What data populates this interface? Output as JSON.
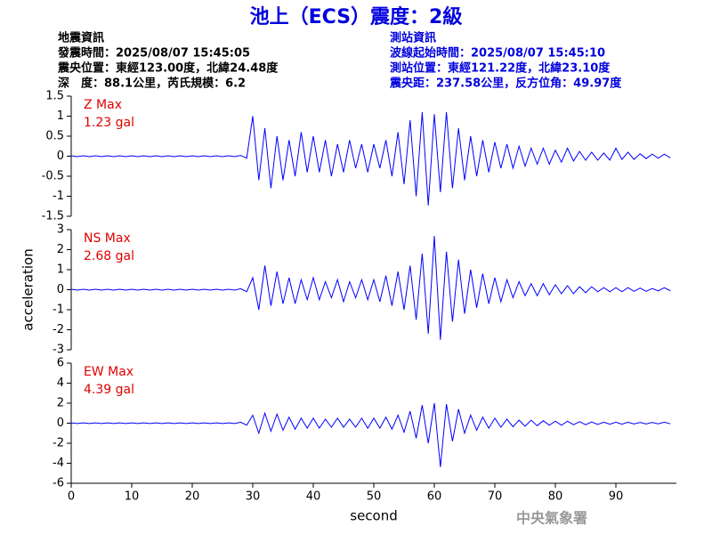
{
  "header": {
    "title": "池上（ECS）震度：2級",
    "left": [
      "地震資訊",
      "發震時間：2025/08/07 15:45:05",
      "震央位置：東經123.00度，北緯24.48度",
      "深　度：88.1公里，芮氏規模：6.2"
    ],
    "right": [
      "測站資訊",
      "波線起始時間：2025/08/07 15:45:10",
      "測站位置：東經121.22度，北緯23.10度",
      "震央距：237.58公里，反方位角：49.97度"
    ]
  },
  "footer": "中央氣象署",
  "chart_data": [
    {
      "type": "line",
      "xlim": [
        0,
        100
      ],
      "ylim": [
        -1.5,
        1.5
      ],
      "yticks": [
        -1.5,
        -1,
        -0.5,
        0,
        0.5,
        1,
        1.5
      ],
      "annotation": "1.23 gal",
      "x": [
        0,
        1,
        2,
        3,
        4,
        5,
        6,
        7,
        8,
        9,
        10,
        11,
        12,
        13,
        14,
        15,
        16,
        17,
        18,
        19,
        20,
        21,
        22,
        23,
        24,
        25,
        26,
        27,
        28,
        29,
        30,
        31,
        32,
        33,
        34,
        35,
        36,
        37,
        38,
        39,
        40,
        41,
        42,
        43,
        44,
        45,
        46,
        47,
        48,
        49,
        50,
        51,
        52,
        53,
        54,
        55,
        56,
        57,
        58,
        59,
        60,
        61,
        62,
        63,
        64,
        65,
        66,
        67,
        68,
        69,
        70,
        71,
        72,
        73,
        74,
        75,
        76,
        77,
        78,
        79,
        80,
        81,
        82,
        83,
        84,
        85,
        86,
        87,
        88,
        89,
        90,
        91,
        92,
        93,
        94,
        95,
        96,
        97,
        98,
        99
      ],
      "series": [
        {
          "name": "Z Max",
          "color": "#0000ff",
          "values": [
            0.01,
            -0.01,
            0.01,
            -0.01,
            0.01,
            -0.01,
            0.01,
            -0.01,
            0.01,
            -0.01,
            0.01,
            -0.01,
            0.01,
            -0.01,
            0.01,
            -0.01,
            0.01,
            -0.01,
            0.01,
            -0.01,
            0.01,
            -0.01,
            0.01,
            -0.01,
            0.01,
            -0.01,
            0.01,
            -0.01,
            0.02,
            -0.05,
            1.0,
            -0.6,
            0.7,
            -0.8,
            0.5,
            -0.6,
            0.4,
            -0.5,
            0.6,
            -0.4,
            0.5,
            -0.4,
            0.4,
            -0.5,
            0.3,
            -0.4,
            0.4,
            -0.3,
            0.3,
            -0.4,
            0.3,
            -0.3,
            0.4,
            -0.5,
            0.6,
            -0.7,
            0.9,
            -1.0,
            1.1,
            -1.23,
            1.05,
            -0.9,
            1.1,
            -0.8,
            0.7,
            -0.6,
            0.5,
            -0.5,
            0.4,
            -0.4,
            0.35,
            -0.3,
            0.3,
            -0.3,
            0.25,
            -0.25,
            0.2,
            -0.2,
            0.2,
            -0.2,
            0.15,
            -0.15,
            0.2,
            -0.12,
            0.12,
            -0.1,
            0.1,
            -0.1,
            0.08,
            -0.1,
            0.2,
            -0.08,
            0.1,
            -0.08,
            0.06,
            -0.06,
            0.05,
            -0.05,
            0.05,
            -0.04
          ]
        }
      ]
    },
    {
      "type": "line",
      "xlim": [
        0,
        100
      ],
      "ylim": [
        -3,
        3
      ],
      "yticks": [
        -3,
        -2,
        -1,
        0,
        1,
        2,
        3
      ],
      "annotation": "2.68 gal",
      "y_label": "acceleration",
      "x": [
        0,
        1,
        2,
        3,
        4,
        5,
        6,
        7,
        8,
        9,
        10,
        11,
        12,
        13,
        14,
        15,
        16,
        17,
        18,
        19,
        20,
        21,
        22,
        23,
        24,
        25,
        26,
        27,
        28,
        29,
        30,
        31,
        32,
        33,
        34,
        35,
        36,
        37,
        38,
        39,
        40,
        41,
        42,
        43,
        44,
        45,
        46,
        47,
        48,
        49,
        50,
        51,
        52,
        53,
        54,
        55,
        56,
        57,
        58,
        59,
        60,
        61,
        62,
        63,
        64,
        65,
        66,
        67,
        68,
        69,
        70,
        71,
        72,
        73,
        74,
        75,
        76,
        77,
        78,
        79,
        80,
        81,
        82,
        83,
        84,
        85,
        86,
        87,
        88,
        89,
        90,
        91,
        92,
        93,
        94,
        95,
        96,
        97,
        98,
        99
      ],
      "series": [
        {
          "name": "NS Max",
          "color": "#0000ff",
          "values": [
            0.02,
            -0.02,
            0.02,
            -0.02,
            0.02,
            -0.02,
            0.02,
            -0.02,
            0.02,
            -0.02,
            0.02,
            -0.02,
            0.02,
            -0.02,
            0.02,
            -0.02,
            0.02,
            -0.02,
            0.02,
            -0.02,
            0.02,
            -0.02,
            0.02,
            -0.02,
            0.02,
            -0.02,
            0.02,
            -0.02,
            0.05,
            -0.1,
            0.6,
            -1.0,
            1.2,
            -0.8,
            0.9,
            -0.7,
            0.6,
            -0.7,
            0.5,
            -0.5,
            0.6,
            -0.5,
            0.4,
            -0.4,
            0.5,
            -0.6,
            0.4,
            -0.4,
            0.5,
            -0.5,
            0.5,
            -0.6,
            0.7,
            -0.8,
            0.9,
            -1.0,
            1.2,
            -1.5,
            1.8,
            -2.2,
            2.68,
            -2.5,
            1.9,
            -1.6,
            1.5,
            -1.2,
            1.0,
            -0.9,
            0.8,
            -0.7,
            0.6,
            -0.6,
            0.5,
            -0.4,
            0.4,
            -0.3,
            0.3,
            -0.3,
            0.3,
            -0.25,
            0.25,
            -0.2,
            0.2,
            -0.2,
            0.15,
            -0.15,
            0.15,
            -0.1,
            0.1,
            -0.1,
            0.1,
            -0.1,
            0.1,
            -0.08,
            0.08,
            -0.08,
            0.06,
            -0.06,
            0.1,
            -0.05
          ]
        }
      ]
    },
    {
      "type": "line",
      "xlim": [
        0,
        100
      ],
      "ylim": [
        -6,
        6
      ],
      "yticks": [
        -6,
        -4,
        -2,
        0,
        2,
        4,
        6
      ],
      "xticks": [
        0,
        10,
        20,
        30,
        40,
        50,
        60,
        70,
        80,
        90
      ],
      "annotation": "4.39 gal",
      "x_label": "second",
      "x": [
        0,
        1,
        2,
        3,
        4,
        5,
        6,
        7,
        8,
        9,
        10,
        11,
        12,
        13,
        14,
        15,
        16,
        17,
        18,
        19,
        20,
        21,
        22,
        23,
        24,
        25,
        26,
        27,
        28,
        29,
        30,
        31,
        32,
        33,
        34,
        35,
        36,
        37,
        38,
        39,
        40,
        41,
        42,
        43,
        44,
        45,
        46,
        47,
        48,
        49,
        50,
        51,
        52,
        53,
        54,
        55,
        56,
        57,
        58,
        59,
        60,
        61,
        62,
        63,
        64,
        65,
        66,
        67,
        68,
        69,
        70,
        71,
        72,
        73,
        74,
        75,
        76,
        77,
        78,
        79,
        80,
        81,
        82,
        83,
        84,
        85,
        86,
        87,
        88,
        89,
        90,
        91,
        92,
        93,
        94,
        95,
        96,
        97,
        98,
        99
      ],
      "series": [
        {
          "name": "EW Max",
          "color": "#0000ff",
          "values": [
            0.03,
            -0.03,
            0.03,
            -0.03,
            0.03,
            -0.03,
            0.03,
            -0.03,
            0.03,
            -0.03,
            0.03,
            -0.03,
            0.03,
            -0.03,
            0.03,
            -0.03,
            0.03,
            -0.03,
            0.03,
            -0.03,
            0.03,
            -0.03,
            0.03,
            -0.03,
            0.03,
            -0.03,
            0.03,
            -0.03,
            0.1,
            -0.2,
            0.8,
            -1.0,
            1.0,
            -0.8,
            0.9,
            -0.7,
            0.6,
            -0.6,
            0.5,
            -0.5,
            0.5,
            -0.5,
            0.4,
            -0.4,
            0.5,
            -0.4,
            0.4,
            -0.4,
            0.5,
            -0.5,
            0.5,
            -0.5,
            0.6,
            -0.6,
            0.8,
            -0.9,
            1.2,
            -1.5,
            1.8,
            -2.0,
            2.0,
            -4.39,
            1.9,
            -1.8,
            1.4,
            -1.0,
            0.8,
            -0.7,
            0.6,
            -0.5,
            0.5,
            -0.4,
            0.4,
            -0.35,
            0.3,
            -0.3,
            0.3,
            -0.25,
            0.25,
            -0.2,
            0.2,
            -0.2,
            0.2,
            -0.15,
            0.15,
            -0.15,
            0.12,
            -0.12,
            0.1,
            -0.1,
            0.1,
            -0.1,
            0.1,
            -0.08,
            0.08,
            -0.08,
            0.08,
            -0.06,
            0.1,
            -0.06
          ]
        }
      ]
    }
  ]
}
